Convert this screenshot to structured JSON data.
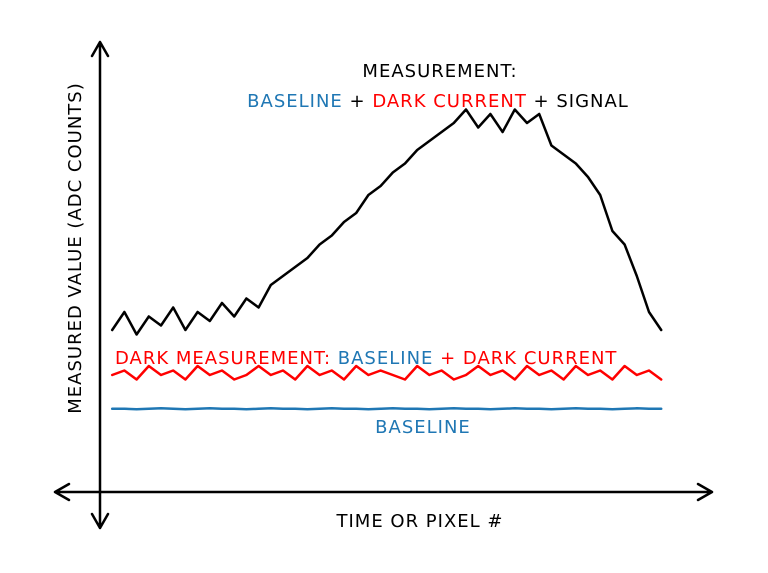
{
  "chart_data": {
    "type": "line",
    "x_label": "TIME OR PIXEL #",
    "y_label": "MEASURED VALUE (ADC COUNTS)",
    "annotations": [
      [
        {
          "text": "MEASUREMENT:",
          "color": "#000000"
        }
      ],
      [
        {
          "text": "BASELINE",
          "color": "#1f77b4"
        },
        {
          "text": " + ",
          "color": "#000000"
        },
        {
          "text": "DARK CURRENT",
          "color": "#ff0000"
        },
        {
          "text": " + SIGNAL",
          "color": "#000000"
        }
      ],
      [
        {
          "text": "DARK MEASUREMENT: ",
          "color": "#ff0000"
        },
        {
          "text": "BASELINE",
          "color": "#1f77b4"
        },
        {
          "text": " + DARK CURRENT",
          "color": "#ff0000"
        }
      ],
      [
        {
          "text": "BASELINE",
          "color": "#1f77b4"
        }
      ]
    ],
    "xlim": [
      0,
      100
    ],
    "ylim": [
      0,
      100
    ],
    "x": [
      2,
      4,
      6,
      8,
      10,
      12,
      14,
      16,
      18,
      20,
      22,
      24,
      26,
      28,
      30,
      32,
      34,
      36,
      38,
      40,
      42,
      44,
      46,
      48,
      50,
      52,
      54,
      56,
      58,
      60,
      62,
      64,
      66,
      68,
      70,
      72,
      74,
      76,
      78,
      80,
      82,
      84,
      86,
      88,
      90,
      92
    ],
    "series": [
      {
        "color": "#000000",
        "values": [
          36,
          40,
          35,
          39,
          37,
          41,
          36,
          40,
          38,
          42,
          39,
          43,
          41,
          46,
          48,
          50,
          52,
          55,
          57,
          60,
          62,
          66,
          68,
          71,
          73,
          76,
          78,
          80,
          82,
          85,
          81,
          84,
          80,
          85,
          82,
          84,
          77,
          75,
          73,
          70,
          66,
          58,
          55,
          48,
          40,
          36
        ]
      },
      {
        "color": "#ff0000",
        "values": [
          26,
          27,
          25,
          28,
          26,
          27,
          25,
          28,
          26,
          27,
          25,
          26,
          28,
          26,
          27,
          25,
          28,
          26,
          27,
          25,
          28,
          26,
          27,
          26,
          25,
          28,
          26,
          27,
          25,
          26,
          28,
          26,
          27,
          25,
          28,
          26,
          27,
          25,
          28,
          26,
          27,
          25,
          28,
          26,
          27,
          25
        ]
      },
      {
        "color": "#1f77b4",
        "values": [
          18.5,
          18.5,
          18.4,
          18.5,
          18.6,
          18.5,
          18.4,
          18.5,
          18.6,
          18.5,
          18.5,
          18.4,
          18.5,
          18.6,
          18.5,
          18.5,
          18.4,
          18.5,
          18.6,
          18.5,
          18.5,
          18.4,
          18.5,
          18.6,
          18.5,
          18.5,
          18.4,
          18.5,
          18.6,
          18.5,
          18.5,
          18.4,
          18.5,
          18.6,
          18.5,
          18.5,
          18.4,
          18.5,
          18.6,
          18.5,
          18.5,
          18.4,
          18.5,
          18.6,
          18.5,
          18.5
        ]
      }
    ]
  }
}
